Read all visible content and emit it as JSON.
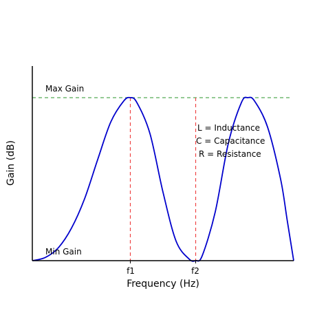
{
  "chart_data": {
    "type": "line",
    "xlabel": "Frequency (Hz)",
    "ylabel": "Gain (dB)",
    "x_ticks": [
      {
        "label": "f1",
        "value": 0.375
      },
      {
        "label": "f2",
        "value": 0.625
      }
    ],
    "xlim": [
      0,
      1
    ],
    "ylim": [
      0,
      1
    ],
    "grid": false,
    "series": [
      {
        "color": "#0000cc",
        "x": [
          0,
          0.05,
          0.1,
          0.15,
          0.2,
          0.25,
          0.3,
          0.35,
          0.375,
          0.4,
          0.45,
          0.5,
          0.55,
          0.6,
          0.625,
          0.65,
          0.7,
          0.75,
          0.8,
          0.825,
          0.85,
          0.9,
          0.95,
          0.975,
          1.0
        ],
        "y": [
          0,
          0.02,
          0.08,
          0.2,
          0.38,
          0.62,
          0.85,
          0.98,
          1.0,
          0.97,
          0.78,
          0.42,
          0.12,
          0.01,
          0.0,
          0.03,
          0.3,
          0.72,
          0.97,
          1.0,
          0.98,
          0.82,
          0.5,
          0.25,
          0.0
        ]
      }
    ],
    "reference_lines": {
      "max_gain": {
        "label": "Max Gain",
        "value": 1.0,
        "color": "#55aa55"
      },
      "min_gain": {
        "label": "Min Gain",
        "value": 0.0
      },
      "vertical_color": "#ee4444"
    },
    "annotations": [
      "L = Inductance",
      "C = Capacitance",
      "R = Resistance"
    ]
  }
}
